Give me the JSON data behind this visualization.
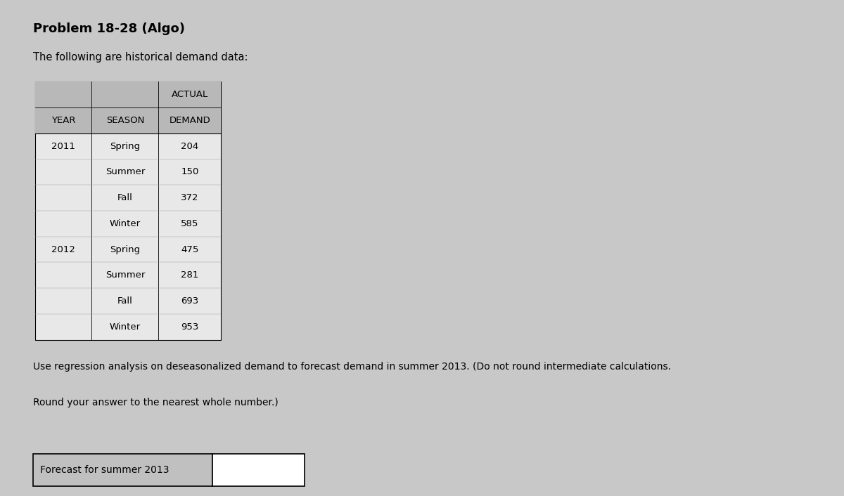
{
  "title": "Problem 18-28 (Algo)",
  "subtitle": "The following are historical demand data:",
  "col_headers_row1": "ACTUAL",
  "col_headers_row2": [
    "YEAR",
    "SEASON",
    "DEMAND"
  ],
  "table_data": [
    [
      "2011",
      "Spring",
      "204"
    ],
    [
      "",
      "Summer",
      "150"
    ],
    [
      "",
      "Fall",
      "372"
    ],
    [
      "",
      "Winter",
      "585"
    ],
    [
      "2012",
      "Spring",
      "475"
    ],
    [
      "",
      "Summer",
      "281"
    ],
    [
      "",
      "Fall",
      "693"
    ],
    [
      "",
      "Winter",
      "953"
    ]
  ],
  "instruction_line1": "Use regression analysis on deseasonalized demand to forecast demand in summer 2013. (Do not round intermediate calculations.",
  "instruction_line2": "Round your answer to the nearest whole number.)",
  "label_text": "Forecast for summer 2013",
  "bg_color": "#c8c8c8",
  "table_header_bg": "#b8b8b8",
  "table_data_bg": "#e8e8e8",
  "label_bg": "#c0c0c0",
  "input_box_bg": "#ffffff",
  "title_fontsize": 13,
  "subtitle_fontsize": 10.5,
  "table_fontsize": 9.5,
  "instruction_fontsize": 10,
  "label_fontsize": 10
}
